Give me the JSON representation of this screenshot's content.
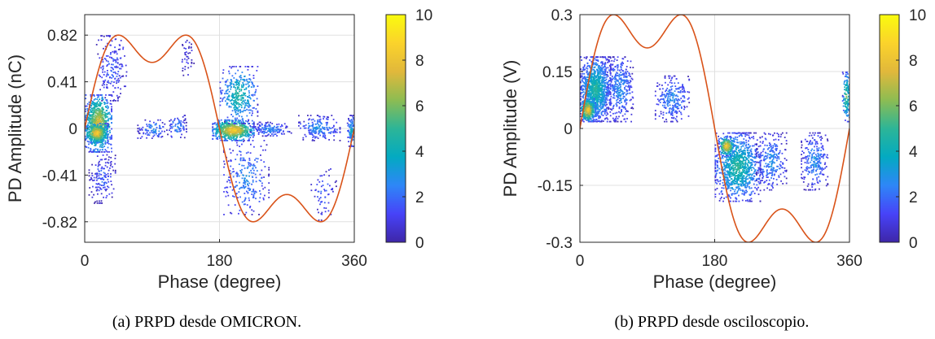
{
  "colors": {
    "curve": "#d95319",
    "grid": "#e0e0e0",
    "axis": "#262626",
    "colormap": [
      "#3e26a8",
      "#4743f8",
      "#2e87f7",
      "#03aac1",
      "#2db597",
      "#8dbc52",
      "#e1b83b",
      "#fbd32b",
      "#f9fb0e"
    ]
  },
  "chart_data": [
    {
      "type": "scatter",
      "title": "",
      "xlabel": "Phase (degree)",
      "ylabel": "PD Amplitude (nC)",
      "caption": "(a)  PRPD desde OMICRON.",
      "xlim": [
        0,
        360
      ],
      "ylim": [
        -1.0,
        1.0
      ],
      "xticks": [
        0,
        180,
        360
      ],
      "xtick_labels": [
        "0",
        "180",
        "360"
      ],
      "yticks": [
        0.82,
        0.41,
        0,
        -0.41,
        -0.82
      ],
      "ytick_labels": [
        "0.82",
        "0.41",
        "0",
        "-0.41",
        "-0.82"
      ],
      "grid": true,
      "colorbar": {
        "ticks": [
          0,
          2,
          4,
          6,
          8,
          10
        ],
        "tick_labels": [
          "0",
          "2",
          "4",
          "6",
          "8",
          "10"
        ],
        "range": [
          0,
          10
        ]
      },
      "reference_curve": {
        "amplitude": 0.82,
        "harmonic3": 0.333,
        "period": 360
      },
      "clusters": [
        {
          "x": [
            0,
            35
          ],
          "y": [
            -0.2,
            0.3
          ],
          "count": 750,
          "density": 8
        },
        {
          "x": [
            15,
            55
          ],
          "y": [
            0.25,
            0.82
          ],
          "count": 180,
          "density": 2
        },
        {
          "x": [
            0,
            30
          ],
          "y": [
            -0.12,
            0.05
          ],
          "count": 300,
          "density": 9
        },
        {
          "x": [
            5,
            40
          ],
          "y": [
            -0.65,
            -0.2
          ],
          "count": 150,
          "density": 2
        },
        {
          "x": [
            70,
            110
          ],
          "y": [
            -0.08,
            0.08
          ],
          "count": 90,
          "density": 3
        },
        {
          "x": [
            110,
            135
          ],
          "y": [
            -0.08,
            0.12
          ],
          "count": 70,
          "density": 3
        },
        {
          "x": [
            125,
            145
          ],
          "y": [
            0.45,
            0.82
          ],
          "count": 40,
          "density": 1
        },
        {
          "x": [
            170,
            225
          ],
          "y": [
            -0.1,
            0.08
          ],
          "count": 650,
          "density": 9
        },
        {
          "x": [
            180,
            230
          ],
          "y": [
            0.05,
            0.55
          ],
          "count": 350,
          "density": 5
        },
        {
          "x": [
            185,
            245
          ],
          "y": [
            -0.75,
            -0.1
          ],
          "count": 250,
          "density": 3
        },
        {
          "x": [
            220,
            275
          ],
          "y": [
            -0.06,
            0.06
          ],
          "count": 150,
          "density": 3
        },
        {
          "x": [
            285,
            340
          ],
          "y": [
            -0.1,
            0.12
          ],
          "count": 180,
          "density": 3
        },
        {
          "x": [
            300,
            335
          ],
          "y": [
            -0.8,
            -0.35
          ],
          "count": 60,
          "density": 2
        },
        {
          "x": [
            350,
            360
          ],
          "y": [
            -0.15,
            0.12
          ],
          "count": 100,
          "density": 4
        }
      ]
    },
    {
      "type": "scatter",
      "title": "",
      "xlabel": "Phase (degree)",
      "ylabel": "PD Amplitude (V)",
      "caption": "(b)  PRPD desde osciloscopio.",
      "xlim": [
        0,
        360
      ],
      "ylim": [
        -0.3,
        0.3
      ],
      "xticks": [
        0,
        180,
        360
      ],
      "xtick_labels": [
        "0",
        "180",
        "360"
      ],
      "yticks": [
        0.3,
        0.15,
        0,
        -0.15,
        -0.3
      ],
      "ytick_labels": [
        "0.3",
        "0.15",
        "0",
        "-0.15",
        "-0.3"
      ],
      "grid": true,
      "colorbar": {
        "ticks": [
          0,
          2,
          4,
          6,
          8,
          10
        ],
        "tick_labels": [
          "0",
          "2",
          "4",
          "6",
          "8",
          "10"
        ],
        "range": [
          0,
          10
        ]
      },
      "reference_curve": {
        "amplitude": 0.3,
        "harmonic3": 0.333,
        "period": 360
      },
      "clusters": [
        {
          "x": [
            0,
            40
          ],
          "y": [
            0.02,
            0.19
          ],
          "count": 1100,
          "density": 5
        },
        {
          "x": [
            0,
            20
          ],
          "y": [
            0.02,
            0.08
          ],
          "count": 250,
          "density": 9
        },
        {
          "x": [
            35,
            70
          ],
          "y": [
            0.02,
            0.19
          ],
          "count": 350,
          "density": 3
        },
        {
          "x": [
            100,
            145
          ],
          "y": [
            0.02,
            0.14
          ],
          "count": 250,
          "density": 3
        },
        {
          "x": [
            180,
            240
          ],
          "y": [
            -0.19,
            -0.01
          ],
          "count": 1000,
          "density": 5
        },
        {
          "x": [
            185,
            205
          ],
          "y": [
            -0.07,
            -0.02
          ],
          "count": 200,
          "density": 9
        },
        {
          "x": [
            235,
            275
          ],
          "y": [
            -0.16,
            -0.01
          ],
          "count": 250,
          "density": 3
        },
        {
          "x": [
            295,
            330
          ],
          "y": [
            -0.16,
            -0.01
          ],
          "count": 250,
          "density": 3
        },
        {
          "x": [
            350,
            360
          ],
          "y": [
            0.02,
            0.15
          ],
          "count": 120,
          "density": 6
        }
      ]
    }
  ]
}
